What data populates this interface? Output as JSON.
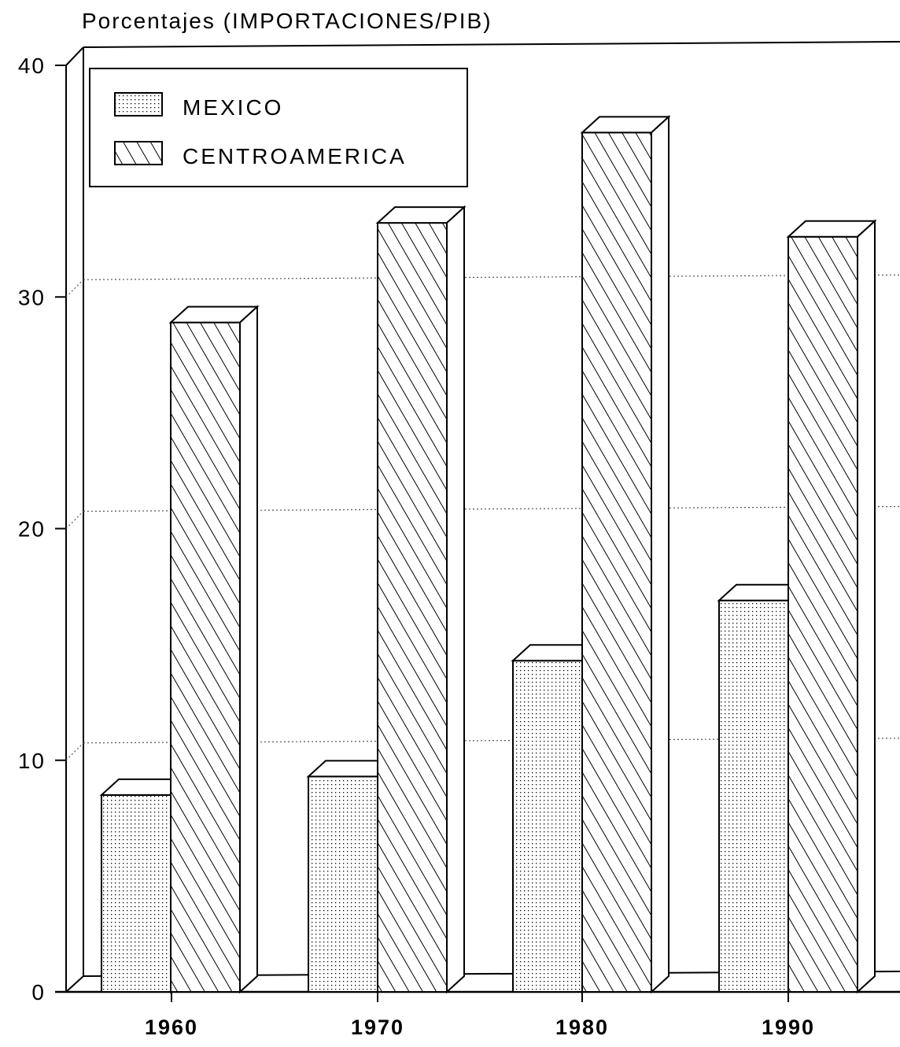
{
  "chart_data": {
    "type": "bar",
    "title": "Porcentajes (IMPORTACIONES/PIB)",
    "categories": [
      "1960",
      "1970",
      "1980",
      "1990"
    ],
    "series": [
      {
        "name": "MEXICO",
        "values": [
          8.5,
          9.3,
          14.3,
          16.9
        ],
        "pattern": "dots"
      },
      {
        "name": "CENTROAMERICA",
        "values": [
          28.9,
          33.2,
          37.1,
          32.6
        ],
        "pattern": "diagonal-hatch"
      }
    ],
    "yticks": [
      "0",
      "10",
      "20",
      "30",
      "40"
    ],
    "ylim": [
      0,
      40
    ],
    "grid": true,
    "legend_position": "top-left",
    "colors": {
      "ink": "#000000",
      "background": "#ffffff",
      "grid": "#555555"
    }
  }
}
